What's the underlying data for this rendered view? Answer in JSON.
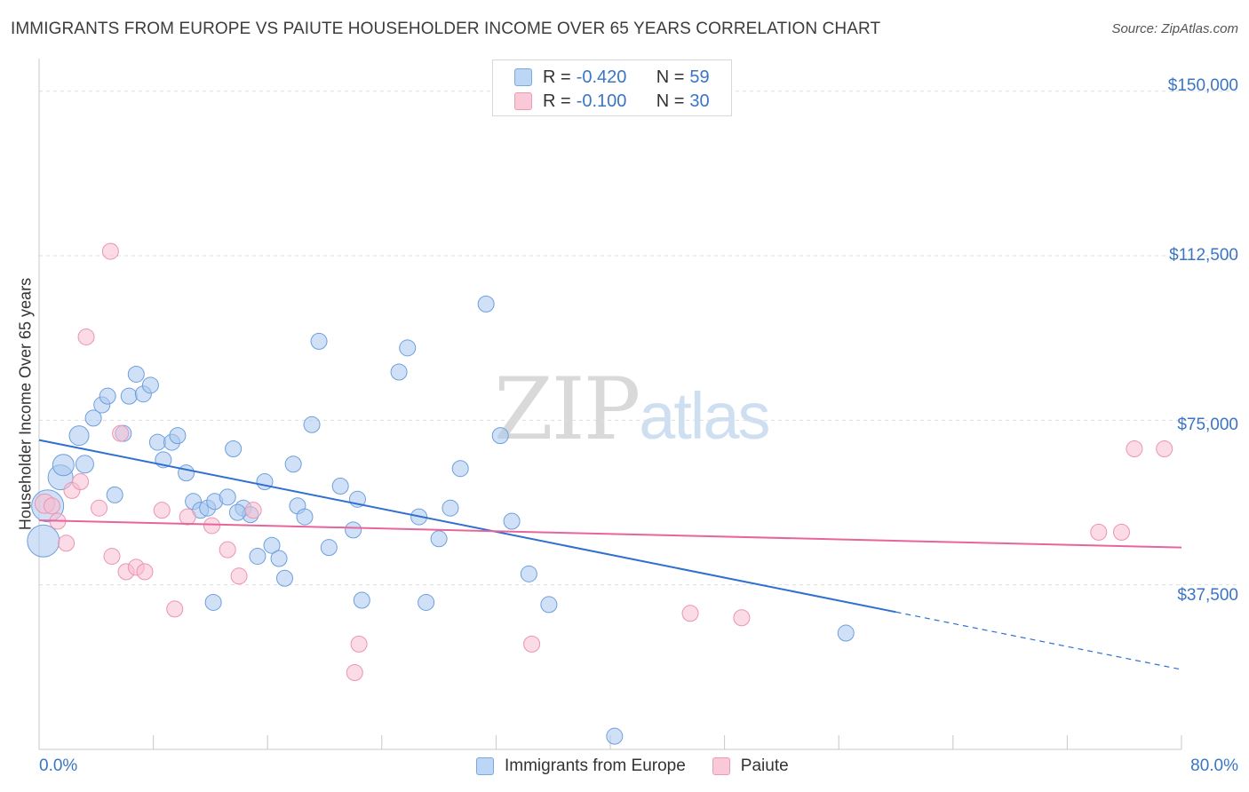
{
  "title": "IMMIGRANTS FROM EUROPE VS PAIUTE HOUSEHOLDER INCOME OVER 65 YEARS CORRELATION CHART",
  "source": "Source: ZipAtlas.com",
  "watermark": {
    "zip": "ZIP",
    "atlas": "atlas"
  },
  "legend": {
    "rows": [
      {
        "r_label": "R = ",
        "r_value": "-0.420",
        "n_label": "N = ",
        "n_value": "59"
      },
      {
        "r_label": "R = ",
        "r_value": "-0.100",
        "n_label": "N = ",
        "n_value": "30"
      }
    ]
  },
  "colors": {
    "blue_fill": "#a9c9f0",
    "blue_stroke": "#6d9fdc",
    "blue_line": "#2e6fd1",
    "pink_fill": "#f7bdd0",
    "pink_stroke": "#ec94b3",
    "pink_line": "#e8659a",
    "axis_text": "#3a75c4",
    "grid": "#dedede"
  },
  "chart_data": {
    "type": "scatter",
    "title": "IMMIGRANTS FROM EUROPE VS PAIUTE HOUSEHOLDER INCOME OVER 65 YEARS CORRELATION CHART",
    "xlabel": "",
    "ylabel": "Householder Income Over 65 years",
    "xlim": [
      0,
      80
    ],
    "ylim": [
      0,
      155000
    ],
    "x_tick_labels": [
      "0.0%",
      "80.0%"
    ],
    "y_ticks": [
      37500,
      75000,
      112500,
      150000
    ],
    "y_tick_labels": [
      "$37,500",
      "$75,000",
      "$112,500",
      "$150,000"
    ],
    "grid": true,
    "legend_position": "top-center",
    "series": [
      {
        "name": "Immigrants from Europe",
        "color": "#a9c9f0",
        "r": -0.42,
        "n": 59,
        "trend": {
          "x0": 0,
          "y0": 70500,
          "x1": 60,
          "y1": 31300,
          "x_dashed_end": 80,
          "y_dashed_end": 18200
        },
        "points": [
          [
            0.3,
            47500,
            18
          ],
          [
            0.6,
            55500,
            18
          ],
          [
            1.5,
            62000,
            14
          ],
          [
            1.7,
            64800,
            12
          ],
          [
            3.2,
            65000,
            10
          ],
          [
            2.8,
            71500,
            11
          ],
          [
            3.8,
            75500,
            9
          ],
          [
            4.4,
            78500,
            9
          ],
          [
            4.8,
            80500,
            9
          ],
          [
            5.3,
            58000,
            9
          ],
          [
            5.9,
            72000,
            9
          ],
          [
            6.3,
            80500,
            9
          ],
          [
            6.8,
            85500,
            9
          ],
          [
            7.3,
            81000,
            9
          ],
          [
            7.8,
            83000,
            9
          ],
          [
            8.3,
            70000,
            9
          ],
          [
            8.7,
            66000,
            9
          ],
          [
            9.3,
            70000,
            9
          ],
          [
            9.7,
            71500,
            9
          ],
          [
            10.3,
            63000,
            9
          ],
          [
            10.8,
            56500,
            9
          ],
          [
            11.3,
            54500,
            9
          ],
          [
            11.8,
            55000,
            9
          ],
          [
            12.3,
            56500,
            9
          ],
          [
            13.2,
            57500,
            9
          ],
          [
            13.6,
            68500,
            9
          ],
          [
            14.3,
            55000,
            9
          ],
          [
            14.8,
            53500,
            9
          ],
          [
            15.3,
            44000,
            9
          ],
          [
            15.8,
            61000,
            9
          ],
          [
            16.3,
            46500,
            9
          ],
          [
            16.8,
            43500,
            9
          ],
          [
            17.2,
            39000,
            9
          ],
          [
            17.8,
            65000,
            9
          ],
          [
            18.1,
            55500,
            9
          ],
          [
            18.6,
            53000,
            9
          ],
          [
            19.1,
            74000,
            9
          ],
          [
            19.6,
            93000,
            9
          ],
          [
            20.3,
            46000,
            9
          ],
          [
            21.1,
            60000,
            9
          ],
          [
            22.0,
            50000,
            9
          ],
          [
            22.3,
            57000,
            9
          ],
          [
            22.6,
            34000,
            9
          ],
          [
            25.2,
            86000,
            9
          ],
          [
            25.8,
            91500,
            9
          ],
          [
            26.6,
            53000,
            9
          ],
          [
            27.1,
            33500,
            9
          ],
          [
            28.0,
            48000,
            9
          ],
          [
            28.8,
            55000,
            9
          ],
          [
            29.5,
            64000,
            9
          ],
          [
            31.3,
            101500,
            9
          ],
          [
            32.3,
            71500,
            9
          ],
          [
            33.1,
            52000,
            9
          ],
          [
            34.3,
            40000,
            9
          ],
          [
            35.7,
            33000,
            9
          ],
          [
            40.3,
            3000,
            9
          ],
          [
            56.5,
            26500,
            9
          ],
          [
            12.2,
            33500,
            9
          ],
          [
            13.9,
            54000,
            9
          ]
        ]
      },
      {
        "name": "Paiute",
        "color": "#f7bdd0",
        "r": -0.1,
        "n": 30,
        "trend": {
          "x0": 0,
          "y0": 52200,
          "x1": 80,
          "y1": 46000
        },
        "points": [
          [
            0.4,
            56000,
            11
          ],
          [
            0.9,
            55500,
            9
          ],
          [
            1.3,
            52000,
            9
          ],
          [
            1.9,
            47000,
            9
          ],
          [
            2.3,
            59000,
            9
          ],
          [
            2.9,
            61000,
            9
          ],
          [
            4.2,
            55000,
            9
          ],
          [
            5.1,
            44000,
            9
          ],
          [
            5.0,
            113500,
            9
          ],
          [
            3.3,
            94000,
            9
          ],
          [
            5.7,
            72000,
            9
          ],
          [
            6.1,
            40500,
            9
          ],
          [
            6.8,
            41500,
            9
          ],
          [
            7.4,
            40500,
            9
          ],
          [
            8.6,
            54500,
            9
          ],
          [
            9.5,
            32000,
            9
          ],
          [
            10.4,
            53000,
            9
          ],
          [
            12.1,
            51000,
            9
          ],
          [
            13.2,
            45500,
            9
          ],
          [
            14.0,
            39500,
            9
          ],
          [
            15.0,
            54500,
            9
          ],
          [
            22.4,
            24000,
            9
          ],
          [
            22.1,
            17500,
            9
          ],
          [
            34.5,
            24000,
            9
          ],
          [
            45.6,
            31000,
            9
          ],
          [
            49.2,
            30000,
            9
          ],
          [
            74.2,
            49500,
            9
          ],
          [
            75.8,
            49500,
            9
          ],
          [
            76.7,
            68500,
            9
          ],
          [
            78.8,
            68500,
            9
          ]
        ]
      }
    ]
  },
  "bottom_legend": [
    "Immigrants from Europe",
    "Paiute"
  ]
}
